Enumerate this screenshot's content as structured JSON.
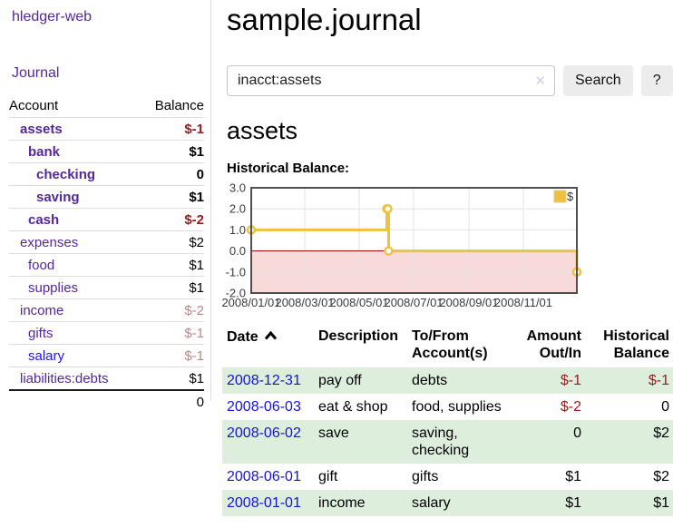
{
  "app": {
    "title": "hledger-web",
    "nav_journal": "Journal"
  },
  "sidebar": {
    "header": {
      "account": "Account",
      "balance": "Balance"
    },
    "accounts": [
      {
        "name": "assets",
        "balance": "$-1"
      },
      {
        "name": "bank",
        "balance": "$1"
      },
      {
        "name": "checking",
        "balance": "0"
      },
      {
        "name": "saving",
        "balance": "$1"
      },
      {
        "name": "cash",
        "balance": "$-2"
      },
      {
        "name": "expenses",
        "balance": "$2"
      },
      {
        "name": "food",
        "balance": "$1"
      },
      {
        "name": "supplies",
        "balance": "$1"
      },
      {
        "name": "income",
        "balance": "$-2"
      },
      {
        "name": "gifts",
        "balance": "$-1"
      },
      {
        "name": "salary",
        "balance": "$-1"
      },
      {
        "name": "liabilities:debts",
        "balance": "$1"
      }
    ],
    "total": "0"
  },
  "header": {
    "title": "sample.journal"
  },
  "search": {
    "query": "inacct:assets",
    "clear_icon": "✕",
    "button": "Search",
    "help_button": "?"
  },
  "account_page": {
    "heading": "assets",
    "chart_label": "Historical Balance:"
  },
  "chart_data": {
    "type": "line",
    "step": true,
    "title": "Historical Balance",
    "series": [
      {
        "name": "$",
        "points": [
          {
            "date": "2008-01-01",
            "value": 1
          },
          {
            "date": "2008-06-01",
            "value": 2
          },
          {
            "date": "2008-06-02",
            "value": 2
          },
          {
            "date": "2008-06-03",
            "value": 0
          },
          {
            "date": "2008-12-31",
            "value": -1
          }
        ]
      }
    ],
    "x_domain": [
      "2008-01-01",
      "2008-12-31"
    ],
    "xticks": [
      {
        "label": "2008/01/01",
        "date": "2008-01-01"
      },
      {
        "label": "2008/03/01",
        "date": "2008-03-01"
      },
      {
        "label": "2008/05/01",
        "date": "2008-05-01"
      },
      {
        "label": "2008/07/01",
        "date": "2008-07-01"
      },
      {
        "label": "2008/09/01",
        "date": "2008-09-01"
      },
      {
        "label": "2008/11/01",
        "date": "2008-11-01"
      }
    ],
    "yticks": [
      3,
      2,
      1,
      0,
      -1,
      -2
    ],
    "ylim": [
      -2,
      3
    ],
    "grid": true,
    "legend_position": "top-right",
    "colors": {
      "series": "#EDC240",
      "series_box_border": "#e6cf7e",
      "negative_fill": "#f9dada",
      "zero_line": "#8f0000",
      "grid": "#e3e3e3",
      "border": "#4f4f4f"
    }
  },
  "register": {
    "columns": [
      "Date",
      "Description",
      "To/From Account(s)",
      "Amount Out/In",
      "Historical Balance"
    ],
    "sort_indicator": "ascending",
    "rows": [
      {
        "date": "2008-12-31",
        "description": "pay off",
        "accounts": "debts",
        "amount": "$-1",
        "balance": "$-1"
      },
      {
        "date": "2008-06-03",
        "description": "eat & shop",
        "accounts": "food, supplies",
        "amount": "$-2",
        "balance": "0"
      },
      {
        "date": "2008-06-02",
        "description": "save",
        "accounts": "saving, checking",
        "amount": "0",
        "balance": "$2"
      },
      {
        "date": "2008-06-01",
        "description": "gift",
        "accounts": "gifts",
        "amount": "$1",
        "balance": "$2"
      },
      {
        "date": "2008-01-01",
        "description": "income",
        "accounts": "salary",
        "amount": "$1",
        "balance": "$1"
      }
    ]
  }
}
